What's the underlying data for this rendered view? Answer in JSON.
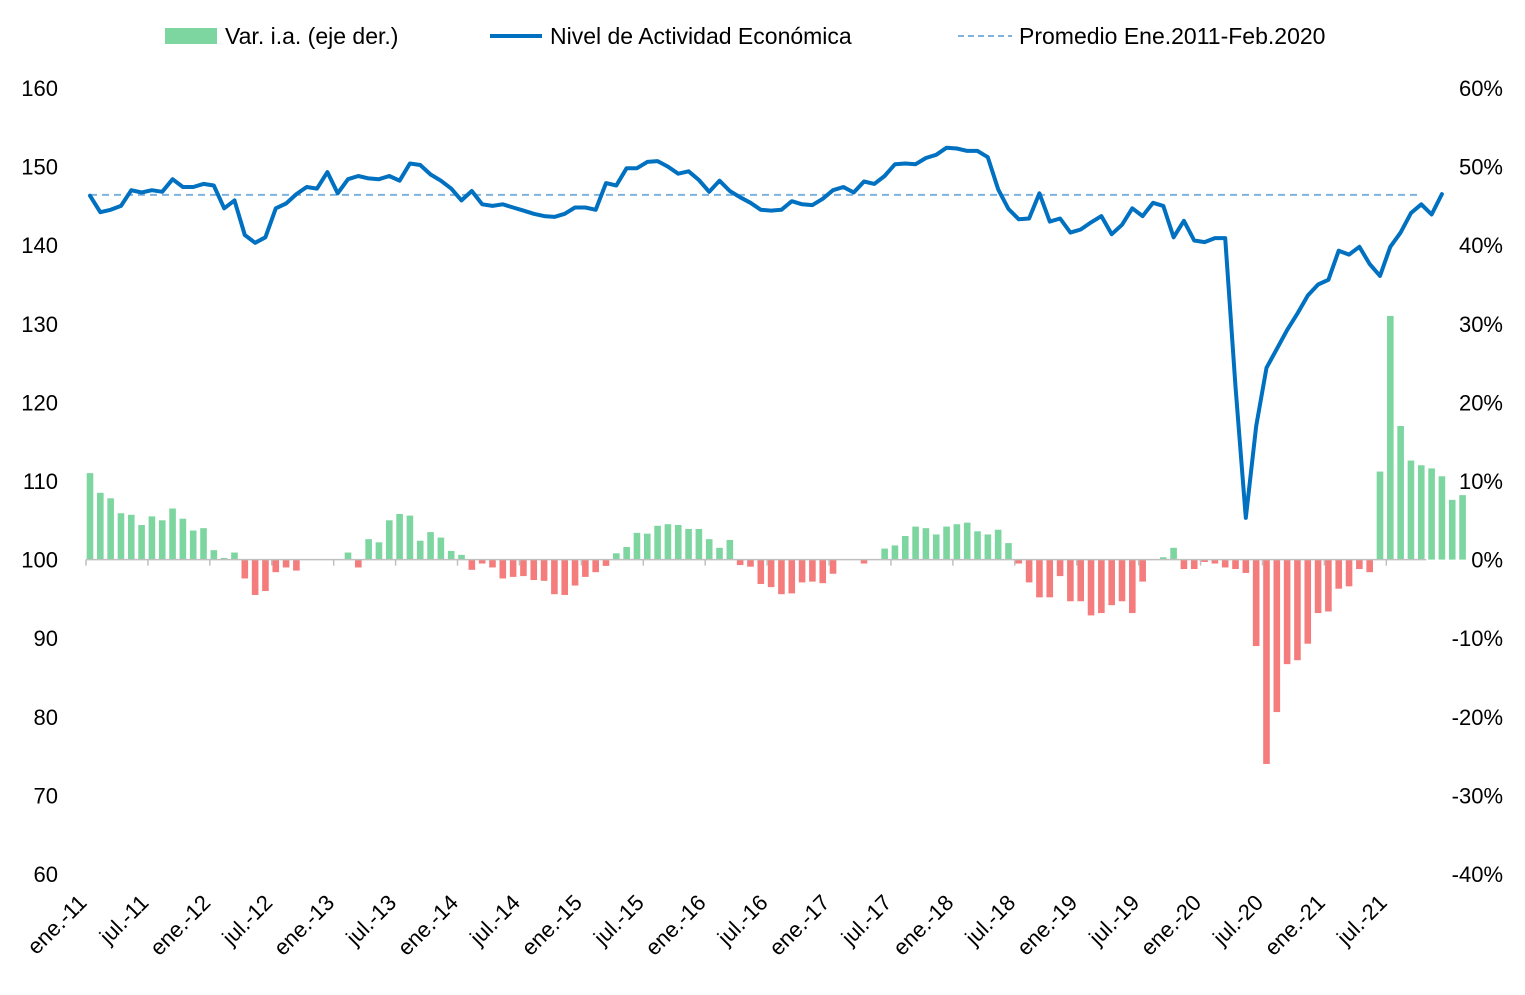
{
  "chart_data": {
    "type": "bar+line",
    "legend": {
      "placement": "top",
      "items": [
        {
          "key": "bars",
          "label": "Var. i.a. (eje der.)",
          "style": "bar"
        },
        {
          "key": "line",
          "label": "Nivel de Actividad Económica",
          "style": "line"
        },
        {
          "key": "avg",
          "label": "Promedio Ene.2011-Feb.2020",
          "style": "dashed"
        }
      ]
    },
    "left_axis": {
      "min": 60,
      "max": 160,
      "step": 10,
      "ticks": [
        "60",
        "70",
        "80",
        "90",
        "100",
        "110",
        "120",
        "130",
        "140",
        "150",
        "160"
      ]
    },
    "right_axis": {
      "min": -40,
      "max": 60,
      "step": 10,
      "ticks": [
        "-40%",
        "-30%",
        "-20%",
        "-10%",
        "0%",
        "10%",
        "20%",
        "30%",
        "40%",
        "50%",
        "60%"
      ]
    },
    "x_tick_labels": [
      "ene.-11",
      "jul.-11",
      "ene.-12",
      "jul.-12",
      "ene.-13",
      "jul.-13",
      "ene.-14",
      "jul.-14",
      "ene.-15",
      "jul.-15",
      "ene.-16",
      "jul.-16",
      "ene.-17",
      "jul.-17",
      "ene.-18",
      "jul.-18",
      "ene.-19",
      "jul.-19",
      "ene.-20",
      "jul.-20",
      "ene.-21",
      "jul.-21"
    ],
    "start_month": "ene.-11",
    "n_months": 130,
    "average_level": 146.4,
    "colors": {
      "line": "#0070C0",
      "positive_bar": "#7DD5A0",
      "negative_bar": "#F47C7C",
      "average": "#7FB3DD"
    },
    "level_series": [
      146.3,
      144.2,
      144.5,
      145.0,
      147.0,
      146.7,
      147.0,
      146.8,
      148.4,
      147.4,
      147.4,
      147.8,
      147.6,
      144.7,
      145.7,
      141.3,
      140.3,
      141.0,
      144.7,
      145.3,
      146.5,
      147.4,
      147.2,
      149.3,
      146.6,
      148.4,
      148.8,
      148.5,
      148.4,
      148.8,
      148.2,
      150.4,
      150.2,
      149.0,
      148.2,
      147.2,
      145.7,
      146.9,
      145.2,
      145.0,
      145.2,
      144.8,
      144.4,
      144.0,
      143.7,
      143.6,
      144.0,
      144.8,
      144.8,
      144.5,
      147.9,
      147.6,
      149.8,
      149.8,
      150.6,
      150.7,
      150.0,
      149.1,
      149.4,
      148.3,
      146.8,
      148.2,
      146.9,
      146.1,
      145.4,
      144.5,
      144.4,
      144.5,
      145.6,
      145.2,
      145.1,
      145.9,
      147.0,
      147.4,
      146.7,
      148.1,
      147.8,
      148.8,
      150.3,
      150.4,
      150.3,
      151.1,
      151.5,
      152.4,
      152.3,
      152.0,
      152.0,
      151.2,
      147.1,
      144.6,
      143.3,
      143.4,
      146.6,
      143.0,
      143.4,
      141.6,
      142.0,
      142.9,
      143.7,
      141.4,
      142.6,
      144.7,
      143.7,
      145.4,
      145.0,
      141.0,
      143.1,
      140.6,
      140.4,
      140.9,
      140.9,
      122.0,
      105.3,
      117.0,
      124.4,
      126.8,
      129.2,
      131.3,
      133.6,
      135.0,
      135.6,
      139.3,
      138.8,
      139.8,
      137.6,
      136.1,
      139.8,
      141.6,
      144.1,
      145.2,
      143.9,
      146.5
    ],
    "yoy_series": [
      11.0,
      8.5,
      7.8,
      5.9,
      5.7,
      4.4,
      5.5,
      5.0,
      6.5,
      5.2,
      3.7,
      4.0,
      1.2,
      0.2,
      0.9,
      -2.4,
      -4.5,
      -4.0,
      -1.6,
      -1.0,
      -1.4,
      0.0,
      0.0,
      0.0,
      0.0,
      0.9,
      -1.0,
      2.6,
      2.2,
      5.0,
      5.8,
      5.6,
      2.4,
      3.5,
      2.8,
      1.1,
      0.6,
      -1.3,
      -0.5,
      -1.0,
      -2.4,
      -2.2,
      -2.1,
      -2.6,
      -2.7,
      -4.4,
      -4.5,
      -3.3,
      -2.2,
      -1.6,
      -0.8,
      0.8,
      1.6,
      3.4,
      3.3,
      4.3,
      4.5,
      4.4,
      3.9,
      3.9,
      2.6,
      1.5,
      2.5,
      -0.7,
      -0.9,
      -3.1,
      -3.5,
      -4.4,
      -4.3,
      -2.9,
      -2.8,
      -3.0,
      -1.8,
      0.0,
      0.0,
      -0.5,
      0.0,
      1.4,
      1.8,
      3.0,
      4.2,
      4.0,
      3.2,
      4.2,
      4.5,
      4.7,
      3.6,
      3.2,
      3.8,
      2.1,
      -0.5,
      -2.9,
      -4.8,
      -4.8,
      -2.1,
      -5.3,
      -5.3,
      -7.1,
      -6.8,
      -5.8,
      -5.3,
      -6.8,
      -2.8,
      0.0,
      0.3,
      1.5,
      -1.2,
      -1.2,
      -0.3,
      -0.5,
      -1.0,
      -1.2,
      -1.7,
      -11.0,
      -26.0,
      -19.4,
      -13.3,
      -12.8,
      -10.7,
      -6.8,
      -6.6,
      -3.7,
      -3.4,
      -1.2,
      -1.6,
      11.2,
      31.0,
      17.0,
      12.6,
      12.0,
      11.6,
      10.6,
      7.6,
      8.2
    ]
  }
}
